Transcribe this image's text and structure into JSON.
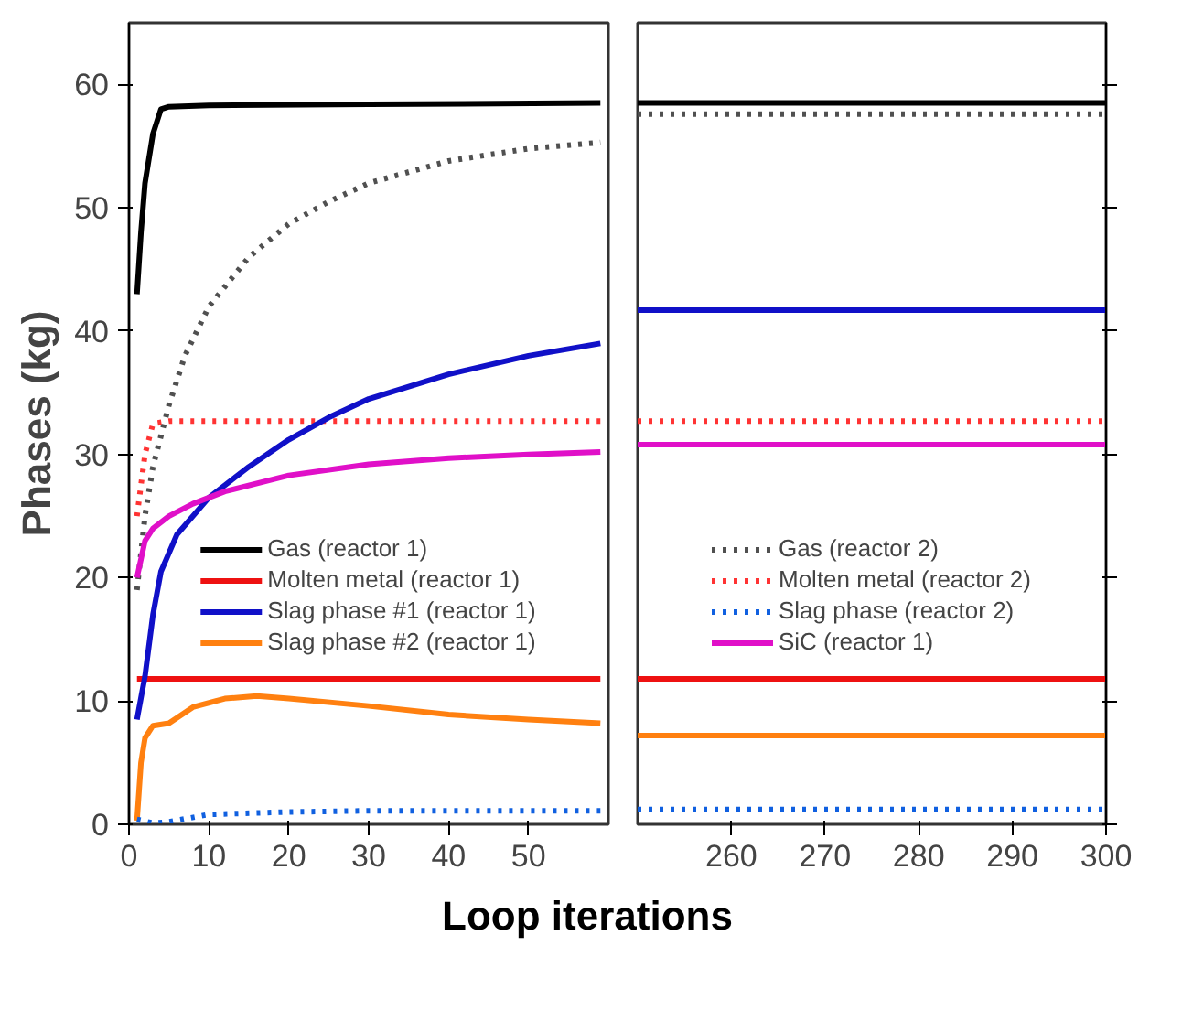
{
  "chart_data": [
    {
      "type": "line",
      "xlabel": "Loop iterations",
      "ylabel": "Phases (kg)",
      "xlim": [
        0,
        60
      ],
      "xticks": [
        0,
        10,
        20,
        30,
        40,
        50
      ],
      "ylim": [
        0,
        65
      ],
      "yticks": [
        0,
        10,
        20,
        30,
        40,
        50,
        60
      ],
      "legend": "bottom",
      "grid": false,
      "series": [
        {
          "name": "Gas (reactor 1)",
          "color": "#000000",
          "line_style": "solid",
          "x": [
            1,
            1.5,
            2,
            3,
            4,
            5,
            10,
            30,
            59
          ],
          "values": [
            43,
            48,
            52,
            56,
            58,
            58.2,
            58.3,
            58.4,
            58.5
          ]
        },
        {
          "color": "#505050",
          "line_style": "dotted",
          "x": [
            1,
            2,
            3,
            5,
            7,
            10,
            15,
            20,
            25,
            30,
            40,
            50,
            59
          ],
          "values": [
            19,
            25,
            29,
            34,
            38,
            42,
            46,
            48.7,
            50.5,
            52,
            53.8,
            54.8,
            55.3
          ]
        },
        {
          "name": "Molten metal (reactor 1)",
          "color": "#ee1111",
          "line_style": "solid",
          "x": [
            1,
            59
          ],
          "values": [
            11.8,
            11.8
          ]
        },
        {
          "color": "#ff3333",
          "line_style": "dotted",
          "x": [
            1,
            2,
            3,
            5,
            59
          ],
          "values": [
            25,
            30,
            32.5,
            32.7,
            32.7
          ]
        },
        {
          "name": "Slag phase #1 (reactor 1)",
          "color": "#1010c8",
          "line_style": "solid",
          "x": [
            1,
            2,
            3,
            4,
            6,
            10,
            15,
            20,
            25,
            30,
            40,
            50,
            59
          ],
          "values": [
            8.5,
            12,
            17,
            20.5,
            23.5,
            26.5,
            29,
            31.2,
            33,
            34.5,
            36.5,
            38,
            39
          ]
        },
        {
          "name": "Slag phase #2 (reactor 1)",
          "color": "#ff8010",
          "line_style": "solid",
          "x": [
            1,
            1.5,
            2,
            3,
            5,
            8,
            12,
            16,
            20,
            30,
            40,
            50,
            59
          ],
          "values": [
            0.3,
            5,
            7,
            8,
            8.2,
            9.5,
            10.2,
            10.4,
            10.2,
            9.6,
            8.9,
            8.5,
            8.2
          ]
        },
        {
          "color": "#1060e0",
          "line_style": "dotted",
          "x": [
            1,
            3,
            5,
            10,
            20,
            30,
            59
          ],
          "values": [
            0.4,
            0.1,
            0.2,
            0.8,
            1.0,
            1.1,
            1.1
          ]
        },
        {
          "color": "#e010c8",
          "line_style": "solid",
          "x": [
            1,
            2,
            3,
            5,
            8,
            12,
            20,
            30,
            40,
            50,
            59
          ],
          "values": [
            20,
            23,
            24,
            25,
            26,
            27,
            28.3,
            29.2,
            29.7,
            30,
            30.2
          ]
        }
      ]
    },
    {
      "type": "line",
      "xlim": [
        250,
        300
      ],
      "xticks": [
        260,
        270,
        280,
        290,
        300
      ],
      "ylim": [
        0,
        65
      ],
      "yticks": [
        0,
        10,
        20,
        30,
        40,
        50,
        60
      ],
      "tick_labels": "x",
      "legend": "bottom",
      "grid": false,
      "series": [
        {
          "color": "#000000",
          "line_style": "solid",
          "x": [
            250,
            300
          ],
          "values": [
            58.5,
            58.5
          ]
        },
        {
          "name": "Gas (reactor 2)",
          "color": "#505050",
          "line_style": "dotted",
          "x": [
            250,
            300
          ],
          "values": [
            57.6,
            57.6
          ]
        },
        {
          "color": "#ee1111",
          "line_style": "solid",
          "x": [
            250,
            300
          ],
          "values": [
            11.8,
            11.8
          ]
        },
        {
          "name": "Molten metal (reactor 2)",
          "color": "#ff3333",
          "line_style": "dotted",
          "x": [
            250,
            300
          ],
          "values": [
            32.7,
            32.7
          ]
        },
        {
          "color": "#1010c8",
          "line_style": "solid",
          "x": [
            250,
            300
          ],
          "values": [
            41.7,
            41.7
          ]
        },
        {
          "color": "#ff8010",
          "line_style": "solid",
          "x": [
            250,
            300
          ],
          "values": [
            7.2,
            7.2
          ]
        },
        {
          "name": "Slag phase (reactor 2)",
          "color": "#1060e0",
          "line_style": "dotted",
          "x": [
            250,
            300
          ],
          "values": [
            1.2,
            1.2
          ]
        },
        {
          "name": "SiC (reactor 1)",
          "color": "#e010c8",
          "line_style": "solid",
          "x": [
            250,
            300
          ],
          "values": [
            30.8,
            30.8
          ]
        }
      ]
    }
  ]
}
